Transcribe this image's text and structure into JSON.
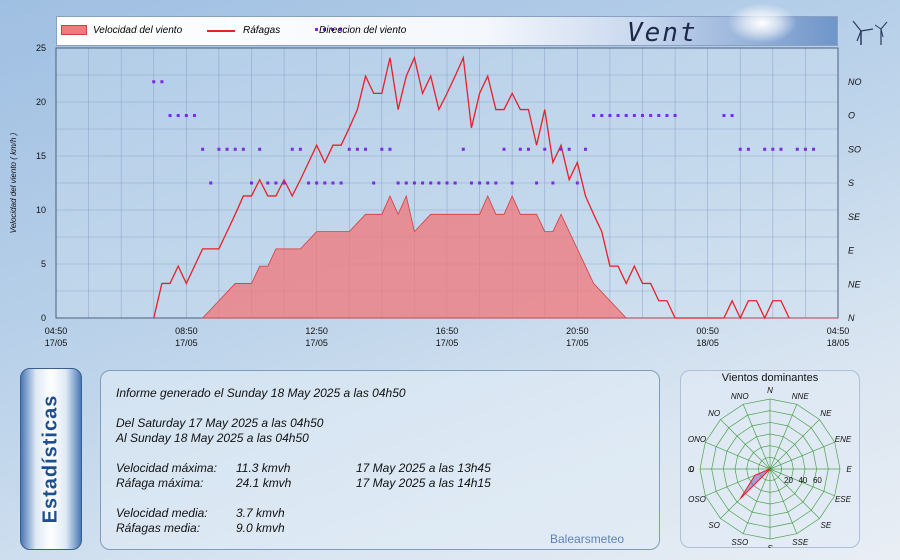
{
  "header": {
    "title": "Vent",
    "legend": [
      "Velocidad del viento",
      "Ráfagas",
      "Direccion del viento"
    ]
  },
  "colors": {
    "speed_fill": "#f07a7e",
    "speed_stroke": "#d23c40",
    "gust_line": "#e8202a",
    "direction_dots": "#7a2be2",
    "grid": "#7f98bf",
    "rose_grid": "#3f9a3f",
    "rose_fill": "#7a5fb8"
  },
  "chart_data": [
    {
      "type": "line",
      "title": "",
      "xlabel": "",
      "ylabel": "Velocidad del viento ( km/h )",
      "xlim_hours": [
        0,
        24
      ],
      "ylim": [
        0,
        25
      ],
      "yticks": [
        0,
        5,
        10,
        15,
        20,
        25
      ],
      "xtick_labels": [
        [
          "04:50",
          "17/05"
        ],
        [
          "08:50",
          "17/05"
        ],
        [
          "12:50",
          "17/05"
        ],
        [
          "16:50",
          "17/05"
        ],
        [
          "20:50",
          "17/05"
        ],
        [
          "00:50",
          "18/05"
        ],
        [
          "04:50",
          "18/05"
        ]
      ],
      "grid": true,
      "legend_position": "top",
      "series": [
        {
          "name": "Velocidad del viento",
          "kind": "area",
          "points": [
            [
              4.5,
              0
            ],
            [
              5.0,
              1.6
            ],
            [
              5.5,
              3.2
            ],
            [
              6.0,
              3.2
            ],
            [
              6.25,
              4.8
            ],
            [
              6.5,
              4.8
            ],
            [
              6.75,
              6.4
            ],
            [
              7.5,
              6.4
            ],
            [
              8.0,
              8.0
            ],
            [
              9.0,
              8.0
            ],
            [
              9.5,
              9.6
            ],
            [
              10.0,
              9.6
            ],
            [
              10.25,
              11.3
            ],
            [
              10.5,
              9.6
            ],
            [
              10.75,
              11.3
            ],
            [
              11.0,
              8.0
            ],
            [
              11.5,
              9.6
            ],
            [
              13.0,
              9.6
            ],
            [
              13.25,
              11.3
            ],
            [
              13.5,
              9.6
            ],
            [
              13.75,
              9.6
            ],
            [
              14.0,
              11.3
            ],
            [
              14.25,
              9.6
            ],
            [
              14.5,
              9.6
            ],
            [
              14.75,
              9.6
            ],
            [
              15.0,
              8.0
            ],
            [
              15.25,
              8.0
            ],
            [
              15.5,
              9.6
            ],
            [
              15.75,
              8.0
            ],
            [
              16.0,
              6.4
            ],
            [
              16.25,
              4.8
            ],
            [
              16.5,
              3.2
            ],
            [
              17.0,
              1.6
            ],
            [
              17.5,
              0
            ],
            [
              24,
              0
            ]
          ]
        },
        {
          "name": "Ráfagas",
          "kind": "line",
          "points": [
            [
              3.0,
              0
            ],
            [
              3.25,
              3.2
            ],
            [
              3.5,
              3.2
            ],
            [
              3.75,
              4.8
            ],
            [
              4.0,
              3.2
            ],
            [
              4.25,
              4.8
            ],
            [
              4.5,
              6.4
            ],
            [
              5.0,
              6.4
            ],
            [
              5.25,
              8.0
            ],
            [
              5.5,
              9.6
            ],
            [
              5.75,
              11.3
            ],
            [
              6.0,
              11.3
            ],
            [
              6.25,
              12.8
            ],
            [
              6.5,
              11.3
            ],
            [
              6.75,
              11.3
            ],
            [
              7.0,
              12.8
            ],
            [
              7.25,
              11.3
            ],
            [
              7.5,
              12.8
            ],
            [
              7.75,
              14.4
            ],
            [
              8.0,
              16.0
            ],
            [
              8.25,
              14.4
            ],
            [
              8.5,
              16.0
            ],
            [
              8.75,
              16.0
            ],
            [
              9.0,
              17.6
            ],
            [
              9.25,
              19.3
            ],
            [
              9.5,
              22.4
            ],
            [
              9.75,
              20.8
            ],
            [
              10.0,
              20.8
            ],
            [
              10.25,
              24.1
            ],
            [
              10.5,
              19.3
            ],
            [
              10.75,
              22.4
            ],
            [
              11.0,
              24.1
            ],
            [
              11.25,
              20.8
            ],
            [
              11.5,
              22.4
            ],
            [
              11.75,
              19.3
            ],
            [
              12.0,
              20.8
            ],
            [
              12.25,
              22.4
            ],
            [
              12.5,
              24.1
            ],
            [
              12.75,
              17.6
            ],
            [
              13.0,
              20.8
            ],
            [
              13.25,
              22.4
            ],
            [
              13.5,
              19.3
            ],
            [
              13.75,
              19.3
            ],
            [
              14.0,
              20.8
            ],
            [
              14.25,
              19.3
            ],
            [
              14.5,
              19.3
            ],
            [
              14.75,
              16.0
            ],
            [
              15.0,
              19.3
            ],
            [
              15.25,
              14.4
            ],
            [
              15.5,
              16.0
            ],
            [
              15.75,
              12.8
            ],
            [
              16.0,
              14.4
            ],
            [
              16.25,
              11.3
            ],
            [
              16.5,
              9.6
            ],
            [
              16.75,
              8.0
            ],
            [
              17.0,
              4.8
            ],
            [
              17.25,
              4.8
            ],
            [
              17.5,
              3.2
            ],
            [
              17.75,
              4.8
            ],
            [
              18.0,
              3.2
            ],
            [
              18.25,
              3.2
            ],
            [
              18.5,
              1.6
            ],
            [
              18.75,
              1.6
            ],
            [
              19.0,
              0
            ],
            [
              20.5,
              0
            ],
            [
              20.75,
              1.6
            ],
            [
              21.0,
              0
            ],
            [
              21.25,
              1.6
            ],
            [
              21.5,
              1.6
            ],
            [
              21.75,
              0
            ],
            [
              22.0,
              1.6
            ],
            [
              22.25,
              1.6
            ],
            [
              22.5,
              0
            ]
          ]
        }
      ]
    },
    {
      "type": "scatter",
      "title": "",
      "ylabel_side": "right",
      "categories": [
        "N",
        "NE",
        "E",
        "SE",
        "S",
        "SO",
        "O",
        "NO"
      ],
      "name": "Direccion del viento",
      "points": [
        [
          3.0,
          "NO"
        ],
        [
          3.25,
          "NO"
        ],
        [
          3.5,
          "O"
        ],
        [
          3.75,
          "O"
        ],
        [
          4.0,
          "O"
        ],
        [
          4.25,
          "O"
        ],
        [
          4.5,
          "SO"
        ],
        [
          4.75,
          "S"
        ],
        [
          5.0,
          "SO"
        ],
        [
          5.25,
          "SO"
        ],
        [
          5.5,
          "SO"
        ],
        [
          5.75,
          "SO"
        ],
        [
          6.0,
          "S"
        ],
        [
          6.25,
          "SO"
        ],
        [
          6.5,
          "S"
        ],
        [
          6.75,
          "S"
        ],
        [
          7.0,
          "S"
        ],
        [
          7.25,
          "SO"
        ],
        [
          7.5,
          "SO"
        ],
        [
          7.75,
          "S"
        ],
        [
          8.0,
          "S"
        ],
        [
          8.25,
          "S"
        ],
        [
          8.5,
          "S"
        ],
        [
          8.75,
          "S"
        ],
        [
          9.0,
          "SO"
        ],
        [
          9.25,
          "SO"
        ],
        [
          9.5,
          "SO"
        ],
        [
          9.75,
          "S"
        ],
        [
          10.0,
          "SO"
        ],
        [
          10.25,
          "SO"
        ],
        [
          10.5,
          "S"
        ],
        [
          10.75,
          "S"
        ],
        [
          11.0,
          "S"
        ],
        [
          11.25,
          "S"
        ],
        [
          11.5,
          "S"
        ],
        [
          11.75,
          "S"
        ],
        [
          12.0,
          "S"
        ],
        [
          12.25,
          "S"
        ],
        [
          12.5,
          "SO"
        ],
        [
          12.75,
          "S"
        ],
        [
          13.0,
          "S"
        ],
        [
          13.25,
          "S"
        ],
        [
          13.5,
          "S"
        ],
        [
          13.75,
          "SO"
        ],
        [
          14.0,
          "S"
        ],
        [
          14.25,
          "SO"
        ],
        [
          14.5,
          "SO"
        ],
        [
          14.75,
          "S"
        ],
        [
          15.0,
          "SO"
        ],
        [
          15.25,
          "S"
        ],
        [
          15.5,
          "SO"
        ],
        [
          15.75,
          "SO"
        ],
        [
          16.0,
          "S"
        ],
        [
          16.25,
          "SO"
        ],
        [
          16.5,
          "O"
        ],
        [
          16.75,
          "O"
        ],
        [
          17.0,
          "O"
        ],
        [
          17.25,
          "O"
        ],
        [
          17.5,
          "O"
        ],
        [
          17.75,
          "O"
        ],
        [
          18.0,
          "O"
        ],
        [
          18.25,
          "O"
        ],
        [
          18.5,
          "O"
        ],
        [
          18.75,
          "O"
        ],
        [
          19.0,
          "O"
        ],
        [
          20.5,
          "O"
        ],
        [
          20.75,
          "O"
        ],
        [
          21.0,
          "SO"
        ],
        [
          21.25,
          "SO"
        ],
        [
          21.75,
          "SO"
        ],
        [
          22.0,
          "SO"
        ],
        [
          22.25,
          "SO"
        ],
        [
          22.75,
          "SO"
        ],
        [
          23.0,
          "SO"
        ],
        [
          23.25,
          "SO"
        ]
      ]
    },
    {
      "type": "radar",
      "title": "Vientos dominantes",
      "directions": [
        "N",
        "NNE",
        "NE",
        "ENE",
        "E",
        "ESE",
        "SE",
        "SSE",
        "S",
        "SSO",
        "SO",
        "OSO",
        "O",
        "ONO",
        "NO",
        "NNO"
      ],
      "radial_ticks": [
        0,
        20,
        40,
        60
      ],
      "values": [
        0,
        0,
        0,
        0,
        0,
        0,
        0,
        0,
        0,
        0,
        36,
        14,
        0,
        0,
        0,
        0
      ]
    }
  ],
  "stats": {
    "side_label": "Estadísticas",
    "report_line": "Informe generado el Sunday 18 May 2025 a las 04h50",
    "from_line": "Del Saturday 17 May 2025 a las 04h50",
    "to_line": "Al Sunday 18 May 2025 a las 04h50",
    "rows": [
      {
        "label": "Velocidad máxima:",
        "value": "11.3 kmvh",
        "when": "17 May 2025 a las 13h45"
      },
      {
        "label": "Ráfaga máxima:",
        "value": "24.1 kmvh",
        "when": "17 May 2025 a las 14h15"
      },
      {
        "label": "Velocidad media:",
        "value": "3.7 kmvh",
        "when": ""
      },
      {
        "label": "Ráfagas media:",
        "value": "9.0 kmvh",
        "when": ""
      }
    ],
    "brand": "Balearsmeteo"
  }
}
